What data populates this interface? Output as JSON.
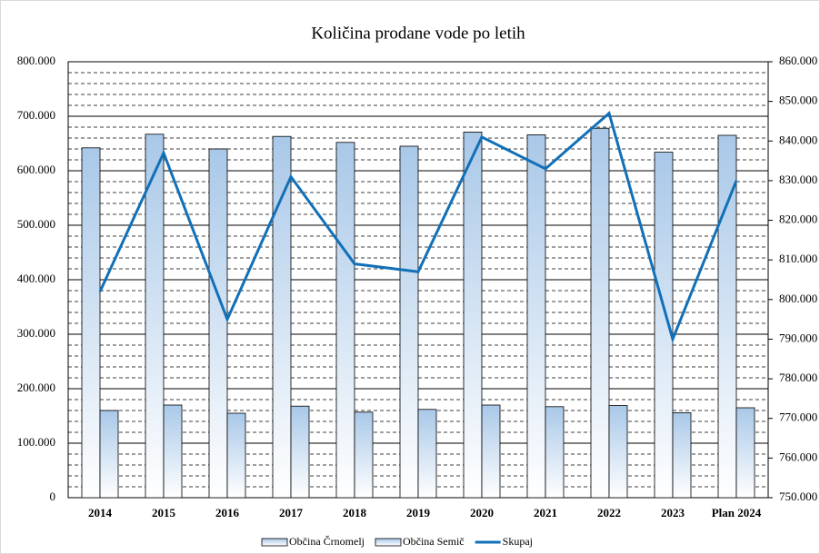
{
  "chart_data": {
    "type": "bar",
    "title": "Količina prodane vode po letih",
    "categories": [
      "2014",
      "2015",
      "2016",
      "2017",
      "2018",
      "2019",
      "2020",
      "2021",
      "2022",
      "2023",
      "Plan 2024"
    ],
    "series": [
      {
        "name": "Občina Črnomelj",
        "type": "bar",
        "color": "#a9c8e8",
        "values": [
          642000,
          667000,
          640000,
          663000,
          652000,
          645000,
          671000,
          666000,
          678000,
          634000,
          665000
        ]
      },
      {
        "name": "Občina Semič",
        "type": "bar",
        "color": "#a9c8e8",
        "values": [
          160000,
          170000,
          155000,
          168000,
          157000,
          162000,
          170000,
          167000,
          169000,
          156000,
          165000
        ]
      },
      {
        "name": "Skupaj",
        "type": "line",
        "axis": "y2",
        "color": "#1170b8",
        "values": [
          802000,
          837000,
          795000,
          831000,
          809000,
          807000,
          841000,
          833000,
          847000,
          790000,
          830000
        ]
      }
    ],
    "ylim": [
      0,
      800000
    ],
    "yticks": [
      0,
      {
        "value": 100000,
        "label": "100.000"
      },
      {
        "value": 200000,
        "label": "200.000"
      },
      {
        "value": 300000,
        "label": "300.000"
      },
      {
        "value": 400000,
        "label": "400.000"
      },
      {
        "value": 500000,
        "label": "500.000"
      },
      {
        "value": 600000,
        "label": "600.000"
      },
      {
        "value": 700000,
        "label": "700.000"
      },
      {
        "value": 800000,
        "label": "800.000"
      }
    ],
    "y2lim": [
      750000,
      860000
    ],
    "y2ticks": [
      {
        "value": 750000,
        "label": "750.000"
      },
      {
        "value": 760000,
        "label": "760.000"
      },
      {
        "value": 770000,
        "label": "770.000"
      },
      {
        "value": 780000,
        "label": "780.000"
      },
      {
        "value": 790000,
        "label": "790.000"
      },
      {
        "value": 800000,
        "label": "800.000"
      },
      {
        "value": 810000,
        "label": "810.000"
      },
      {
        "value": 820000,
        "label": "820.000"
      },
      {
        "value": 830000,
        "label": "830.000"
      },
      {
        "value": 840000,
        "label": "840.000"
      },
      {
        "value": 850000,
        "label": "850.000"
      },
      {
        "value": 860000,
        "label": "860.000"
      }
    ],
    "grid": true,
    "legend": "bottom"
  }
}
